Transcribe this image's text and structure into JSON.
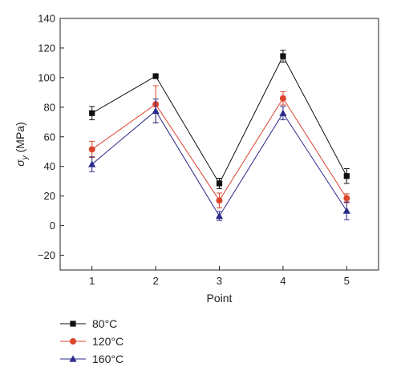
{
  "chart_data": {
    "type": "line",
    "xlabel": "Point",
    "ylabel": "σy (MPa)",
    "ylabel_main": "σ",
    "ylabel_sub": "y",
    "ylabel_unit": " (MPa)",
    "x": [
      1,
      2,
      3,
      4,
      5
    ],
    "xlim": [
      0.5,
      5.5
    ],
    "ylim": [
      -30,
      140
    ],
    "xticks": [
      1,
      2,
      3,
      4,
      5
    ],
    "yticks": [
      -20,
      0,
      20,
      40,
      60,
      80,
      100,
      120,
      140
    ],
    "grid": false,
    "legend_position": "below-left",
    "series": [
      {
        "name": "80°C",
        "color": "#111111",
        "marker": "square",
        "values": [
          76,
          101,
          28.5,
          114.5,
          33.5
        ],
        "errors": [
          4.5,
          1,
          3.5,
          4,
          5
        ]
      },
      {
        "name": "120°C",
        "color": "#d9462b",
        "marker": "circle",
        "values": [
          51.5,
          82,
          17,
          86,
          18.5
        ],
        "errors": [
          5.5,
          12.5,
          5,
          4.5,
          3
        ]
      },
      {
        "name": "160°C",
        "color": "#2b2a8c",
        "marker": "triangle",
        "values": [
          41.5,
          77.5,
          6.5,
          76,
          10
        ],
        "errors": [
          5,
          8,
          3,
          4.5,
          6
        ]
      }
    ]
  }
}
